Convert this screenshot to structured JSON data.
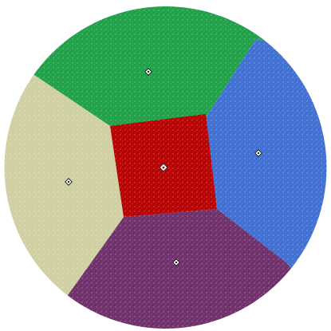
{
  "diagram": {
    "kind": "voronoi-scatter-disk",
    "regions": [
      {
        "id": "top",
        "color": "#1ea046"
      },
      {
        "id": "right",
        "color": "#3f6fd2"
      },
      {
        "id": "bottom",
        "color": "#6e2f6a"
      },
      {
        "id": "left",
        "color": "#cfcfa2"
      },
      {
        "id": "center",
        "color": "#b80000"
      }
    ],
    "centroid_marker": "diamond"
  }
}
